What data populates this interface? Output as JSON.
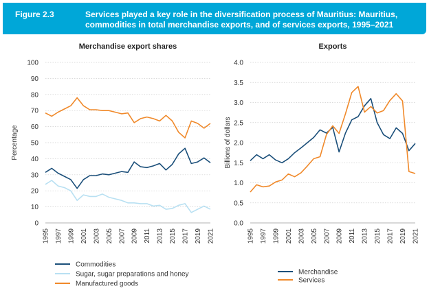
{
  "banner": {
    "figure_number": "Figure 2.3",
    "title": "Services played a key role in the diversification process of Mauritius: Mauritius, commodities in total merchandise exports, and of services exports, 1995–2021"
  },
  "chart_data": [
    {
      "type": "line",
      "title": "Merchandise export shares",
      "xlabel": "",
      "ylabel": "Percentage",
      "ylim": [
        0,
        100
      ],
      "yticks": [
        0,
        10,
        20,
        30,
        40,
        50,
        60,
        70,
        80,
        90,
        100
      ],
      "x": [
        1995,
        1996,
        1997,
        1998,
        1999,
        2000,
        2001,
        2002,
        2003,
        2004,
        2005,
        2006,
        2007,
        2008,
        2009,
        2010,
        2011,
        2012,
        2013,
        2014,
        2015,
        2016,
        2017,
        2018,
        2019,
        2020,
        2021
      ],
      "xtick_labels": [
        "1995",
        "1997",
        "1999",
        "2001",
        "2003",
        "2005",
        "2007",
        "2009",
        "2011",
        "2013",
        "2015",
        "2017",
        "2019",
        "2021"
      ],
      "grid": "horizontal dotted",
      "legend": "bottom",
      "series": [
        {
          "name": "Commodities",
          "color": "#1b4f7a",
          "values": [
            31.5,
            34,
            31,
            29,
            27,
            21.5,
            27,
            29.5,
            29.5,
            30.5,
            30,
            31,
            32,
            31.5,
            38,
            35,
            34.5,
            35.5,
            37,
            33,
            36.5,
            43,
            46.5,
            37,
            38,
            40.5,
            37.5
          ]
        },
        {
          "name": "Sugar, sugar preparations and honey",
          "color": "#b8e0f2",
          "values": [
            24,
            26.5,
            23,
            22,
            20,
            14,
            17.5,
            16.5,
            16.5,
            18,
            16,
            15,
            14,
            12.5,
            12.5,
            12,
            12,
            10.5,
            11,
            8.5,
            9,
            11,
            12,
            6.5,
            8.5,
            10.5,
            8.5
          ]
        },
        {
          "name": "Manufactured goods",
          "color": "#f0892a",
          "values": [
            68.5,
            66.5,
            69,
            71,
            73,
            78,
            73,
            70.5,
            70.5,
            70,
            70,
            69,
            68,
            68.5,
            62.5,
            65,
            66,
            65,
            63.5,
            67,
            63.5,
            56.5,
            53,
            63.5,
            62,
            59,
            62
          ]
        }
      ]
    },
    {
      "type": "line",
      "title": "Exports",
      "xlabel": "",
      "ylabel": "Billions of dollars",
      "ylim": [
        0,
        4
      ],
      "yticks": [
        "0.0",
        "0.5",
        "1.0",
        "1.5",
        "2.0",
        "2.5",
        "3.0",
        "3.5",
        "4.0"
      ],
      "x": [
        1995,
        1996,
        1997,
        1998,
        1999,
        2000,
        2001,
        2002,
        2003,
        2004,
        2005,
        2006,
        2007,
        2008,
        2009,
        2010,
        2011,
        2012,
        2013,
        2014,
        2015,
        2016,
        2017,
        2018,
        2019,
        2020,
        2021
      ],
      "xtick_labels": [
        "1995",
        "1997",
        "1999",
        "2001",
        "2003",
        "2005",
        "2007",
        "2009",
        "2011",
        "2013",
        "2015",
        "2017",
        "2019",
        "2021"
      ],
      "grid": "horizontal dotted",
      "legend": "bottom",
      "series": [
        {
          "name": "Merchandise",
          "color": "#1b4f7a",
          "values": [
            1.55,
            1.7,
            1.6,
            1.7,
            1.57,
            1.5,
            1.6,
            1.75,
            1.87,
            2.0,
            2.13,
            2.32,
            2.24,
            2.38,
            1.77,
            2.24,
            2.57,
            2.65,
            2.92,
            3.1,
            2.5,
            2.2,
            2.1,
            2.37,
            2.23,
            1.8,
            1.98
          ]
        },
        {
          "name": "Services",
          "color": "#f0892a",
          "values": [
            0.77,
            0.95,
            0.9,
            0.92,
            1.02,
            1.07,
            1.22,
            1.15,
            1.25,
            1.42,
            1.6,
            1.65,
            2.2,
            2.42,
            2.23,
            2.72,
            3.25,
            3.4,
            2.76,
            2.9,
            2.74,
            2.8,
            3.05,
            3.22,
            3.04,
            1.28,
            1.23
          ]
        }
      ]
    }
  ]
}
